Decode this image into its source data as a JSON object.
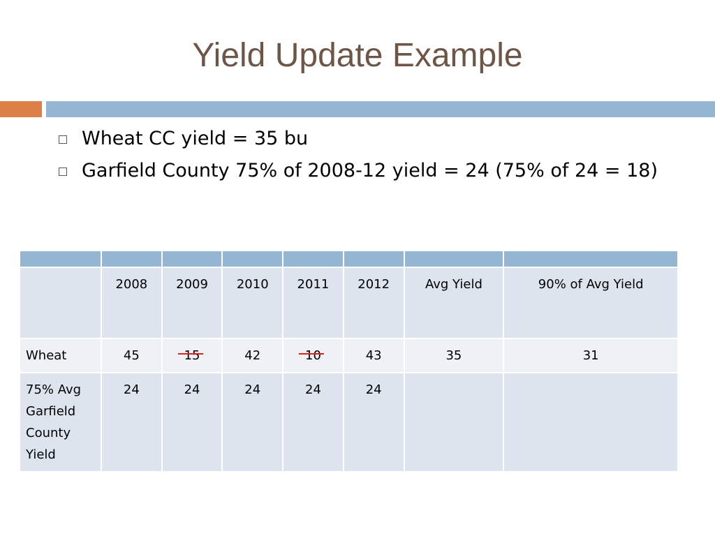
{
  "header": {
    "title": "Yield Update Example"
  },
  "bullets": [
    "Wheat CC yield = 35 bu",
    "Garfield County 75% of 2008-12 yield = 24 (75% of 24 = 18)"
  ],
  "table": {
    "columns": [
      2008,
      2009,
      2010,
      2011,
      2012,
      "Avg Yield",
      "90% of Avg Yield"
    ],
    "rows": [
      {
        "label": "Wheat",
        "values": [
          45,
          15,
          42,
          10,
          43,
          35,
          31
        ]
      },
      {
        "label": "75% Avg Garfield County Yield",
        "values": [
          24,
          24,
          24,
          24,
          24
        ]
      }
    ]
  }
}
